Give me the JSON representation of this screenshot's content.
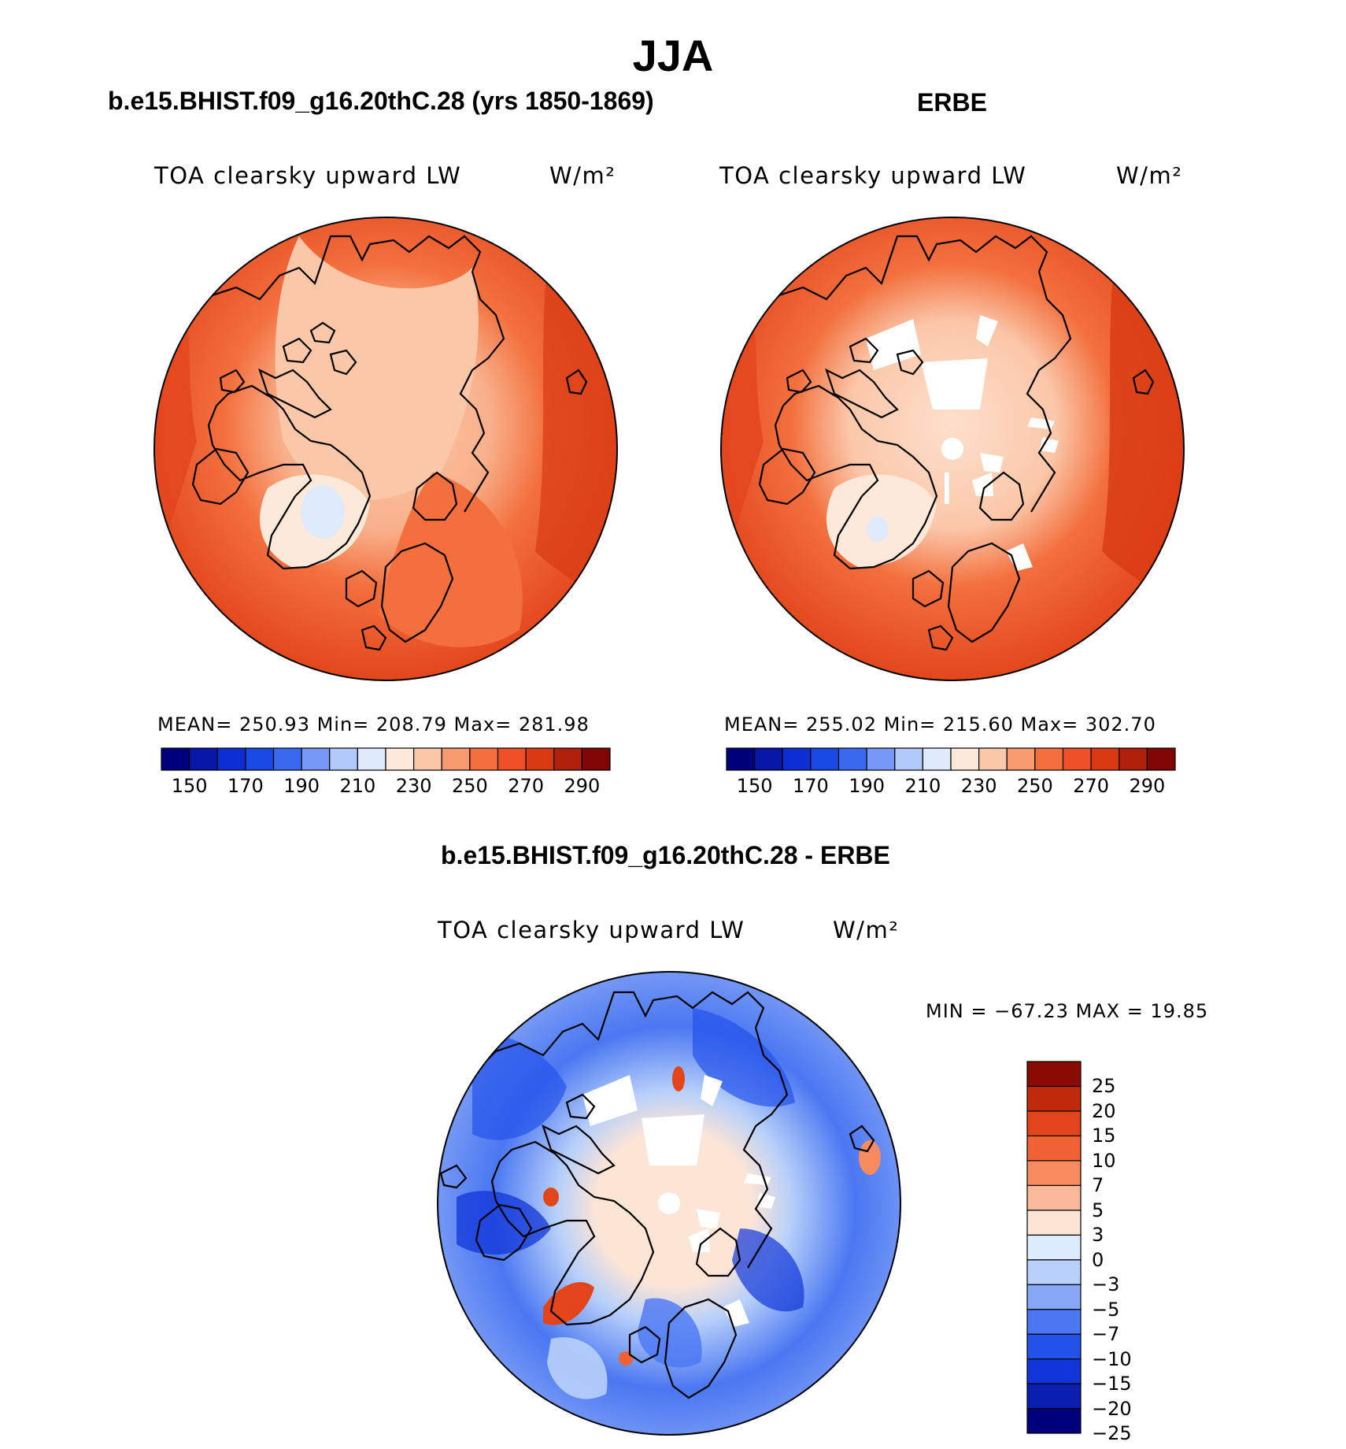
{
  "title": "JJA",
  "panels": {
    "model": {
      "heading": "b.e15.BHIST.f09_g16.20thC.28 (yrs 1850-1869)",
      "variable": "TOA clearsky upward LW",
      "units": "W/m²",
      "stats": "MEAN= 250.93   Min= 208.79   Max= 281.98"
    },
    "obs": {
      "heading": "ERBE",
      "variable": "TOA clearsky upward LW",
      "units": "W/m²",
      "stats": "MEAN= 255.02   Min= 215.60   Max= 302.70"
    },
    "diff": {
      "heading": "b.e15.BHIST.f09_g16.20thC.28 - ERBE",
      "variable": "TOA clearsky upward LW",
      "units": "W/m²",
      "stats": "MIN = −67.23 MAX =   19.85"
    }
  },
  "abs_colorbar": {
    "colors": [
      "#00007a",
      "#0616a6",
      "#0d2ed0",
      "#1a4ae6",
      "#3a69f0",
      "#7898f6",
      "#b0c8fa",
      "#dfeafd",
      "#fde9d9",
      "#fbc7a9",
      "#f89a70",
      "#f3703e",
      "#ec5024",
      "#d83a12",
      "#b1200a",
      "#7f0604"
    ],
    "tick_labels": [
      "150",
      "170",
      "190",
      "210",
      "230",
      "250",
      "270",
      "290"
    ]
  },
  "diff_colorbar": {
    "colors": [
      "#00007a",
      "#0a1fb0",
      "#1036d8",
      "#2352ea",
      "#4a77f2",
      "#86a6f6",
      "#b8d0fa",
      "#dcecfd",
      "#fde5d6",
      "#fbb99b",
      "#f78a5e",
      "#f06234",
      "#e2451a",
      "#c02a0c",
      "#8a0a04"
    ],
    "tick_labels": [
      "25",
      "20",
      "15",
      "10",
      "7",
      "5",
      "3",
      "0",
      "−3",
      "−5",
      "−7",
      "−10",
      "−15",
      "−20",
      "−25"
    ]
  }
}
